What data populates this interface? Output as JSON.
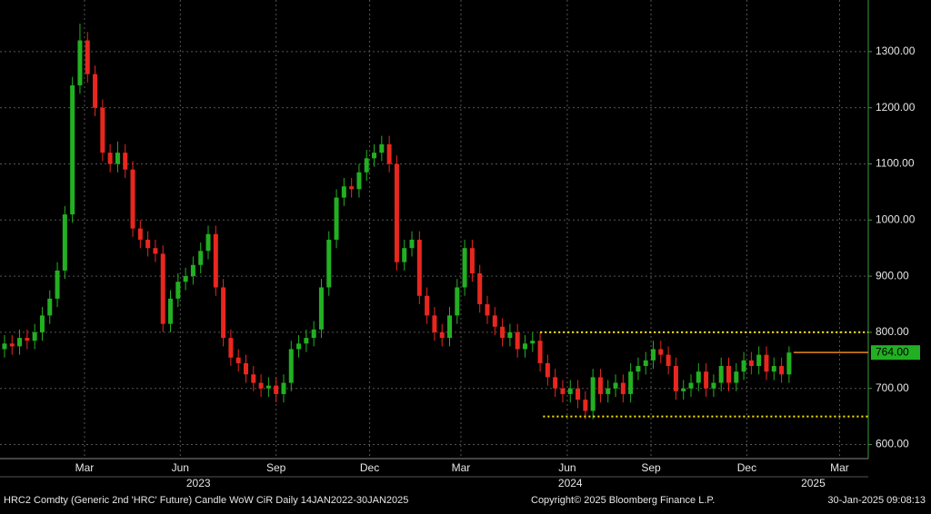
{
  "chart_data": {
    "type": "candlestick",
    "open": [
      770,
      780,
      775,
      790,
      785,
      800,
      830,
      860,
      910,
      1010,
      1240,
      1320,
      1260,
      1200,
      1120,
      1100,
      1120,
      1090,
      985,
      965,
      950,
      940,
      815,
      860,
      890,
      900,
      920,
      945,
      975,
      880,
      790,
      755,
      745,
      725,
      710,
      700,
      705,
      690,
      710,
      770,
      780,
      790,
      805,
      880,
      965,
      1040,
      1060,
      1055,
      1085,
      1110,
      1120,
      1135,
      1100,
      925,
      950,
      965,
      865,
      830,
      800,
      790,
      830,
      880,
      950,
      905,
      850,
      830,
      810,
      790,
      800,
      770,
      780,
      785,
      745,
      720,
      700,
      690,
      700,
      680,
      660,
      720,
      690,
      700,
      710,
      690,
      730,
      740,
      750,
      770,
      760,
      740,
      695,
      700,
      710,
      730,
      700,
      710,
      740,
      710,
      730,
      750,
      740,
      760,
      730,
      740,
      725
    ],
    "high": [
      795,
      795,
      805,
      805,
      815,
      845,
      875,
      925,
      1025,
      1255,
      1350,
      1335,
      1275,
      1215,
      1135,
      1140,
      1135,
      1105,
      1000,
      980,
      965,
      955,
      875,
      905,
      915,
      935,
      960,
      990,
      990,
      895,
      805,
      770,
      760,
      740,
      725,
      720,
      720,
      725,
      785,
      795,
      805,
      820,
      895,
      980,
      1055,
      1075,
      1075,
      1100,
      1125,
      1135,
      1150,
      1150,
      1115,
      965,
      980,
      980,
      880,
      845,
      815,
      845,
      895,
      965,
      965,
      920,
      865,
      845,
      825,
      815,
      815,
      795,
      800,
      800,
      760,
      735,
      715,
      715,
      715,
      695,
      735,
      735,
      715,
      725,
      725,
      745,
      755,
      765,
      785,
      785,
      775,
      755,
      715,
      725,
      745,
      745,
      725,
      755,
      755,
      745,
      765,
      765,
      775,
      775,
      755,
      755,
      775
    ],
    "low": [
      755,
      760,
      760,
      770,
      770,
      785,
      815,
      845,
      895,
      995,
      1225,
      1245,
      1185,
      1105,
      1085,
      1085,
      1075,
      970,
      950,
      935,
      925,
      800,
      800,
      845,
      875,
      885,
      905,
      930,
      865,
      775,
      740,
      730,
      710,
      695,
      685,
      685,
      675,
      675,
      695,
      755,
      765,
      775,
      790,
      865,
      950,
      1025,
      1040,
      1040,
      1070,
      1095,
      1105,
      1085,
      910,
      910,
      935,
      850,
      815,
      785,
      775,
      775,
      815,
      865,
      890,
      835,
      815,
      795,
      775,
      775,
      755,
      755,
      765,
      730,
      705,
      685,
      675,
      675,
      665,
      645,
      645,
      675,
      675,
      685,
      675,
      675,
      715,
      725,
      735,
      745,
      725,
      680,
      680,
      685,
      695,
      685,
      685,
      695,
      695,
      695,
      715,
      725,
      725,
      715,
      715,
      710,
      710
    ],
    "close": [
      780,
      775,
      790,
      785,
      800,
      830,
      860,
      910,
      1010,
      1240,
      1320,
      1260,
      1200,
      1120,
      1100,
      1120,
      1090,
      985,
      965,
      950,
      940,
      815,
      860,
      890,
      900,
      920,
      945,
      975,
      880,
      790,
      755,
      745,
      725,
      710,
      700,
      705,
      690,
      710,
      770,
      780,
      790,
      805,
      880,
      965,
      1040,
      1060,
      1055,
      1085,
      1110,
      1120,
      1135,
      1100,
      925,
      950,
      965,
      865,
      830,
      800,
      790,
      830,
      880,
      950,
      905,
      850,
      830,
      810,
      790,
      800,
      770,
      780,
      785,
      745,
      720,
      700,
      690,
      700,
      680,
      660,
      720,
      690,
      700,
      710,
      690,
      730,
      740,
      750,
      770,
      760,
      740,
      695,
      700,
      710,
      730,
      700,
      710,
      740,
      710,
      730,
      750,
      740,
      760,
      730,
      740,
      725,
      764
    ],
    "up_color": "#22b022",
    "down_color": "#e8271e",
    "xlim": [
      -0.6,
      114.5
    ],
    "xticks": [
      {
        "value": 10.6,
        "label": "Mar"
      },
      {
        "value": 23.3,
        "label": "Jun"
      },
      {
        "value": 36,
        "label": "Sep"
      },
      {
        "value": 48.4,
        "label": "Dec"
      },
      {
        "value": 60.5,
        "label": "Mar"
      },
      {
        "value": 74.6,
        "label": "Jun"
      },
      {
        "value": 85.7,
        "label": "Sep"
      },
      {
        "value": 98.4,
        "label": "Dec"
      },
      {
        "value": 110.7,
        "label": "Mar"
      }
    ],
    "year_ticks": [
      {
        "value": 25.7,
        "label": "2023"
      },
      {
        "value": 75,
        "label": "2024"
      },
      {
        "value": 107.2,
        "label": "2025"
      }
    ],
    "ylim": [
      575,
      1392
    ],
    "yticks": [
      {
        "value": 600,
        "label": "600.00"
      },
      {
        "value": 700,
        "label": "700.00"
      },
      {
        "value": 800,
        "label": "800.00"
      },
      {
        "value": 900,
        "label": "900.00"
      },
      {
        "value": 1000,
        "label": "1000.00"
      },
      {
        "value": 1100,
        "label": "1100.00"
      },
      {
        "value": 1200,
        "label": "1200.00"
      },
      {
        "value": 1300,
        "label": "1300.00"
      }
    ],
    "grid": true,
    "reference_lines": [
      {
        "value": 800,
        "from": 71,
        "color": "#ffe600"
      },
      {
        "value": 650,
        "from": 71.4,
        "color": "#ffe600"
      }
    ],
    "last_price": {
      "value": 764,
      "label": "764.00",
      "from": 104.6,
      "color": "#e8871e",
      "box_color": "#22b022"
    },
    "footer_left": "HRC2 Comdty (Generic 2nd 'HRC' Future) Candle WoW CiR  Daily 14JAN2022-30JAN2025",
    "footer_center": "Copyright© 2025 Bloomberg Finance L.P.",
    "footer_right": "30-Jan-2025 09:08:13"
  }
}
